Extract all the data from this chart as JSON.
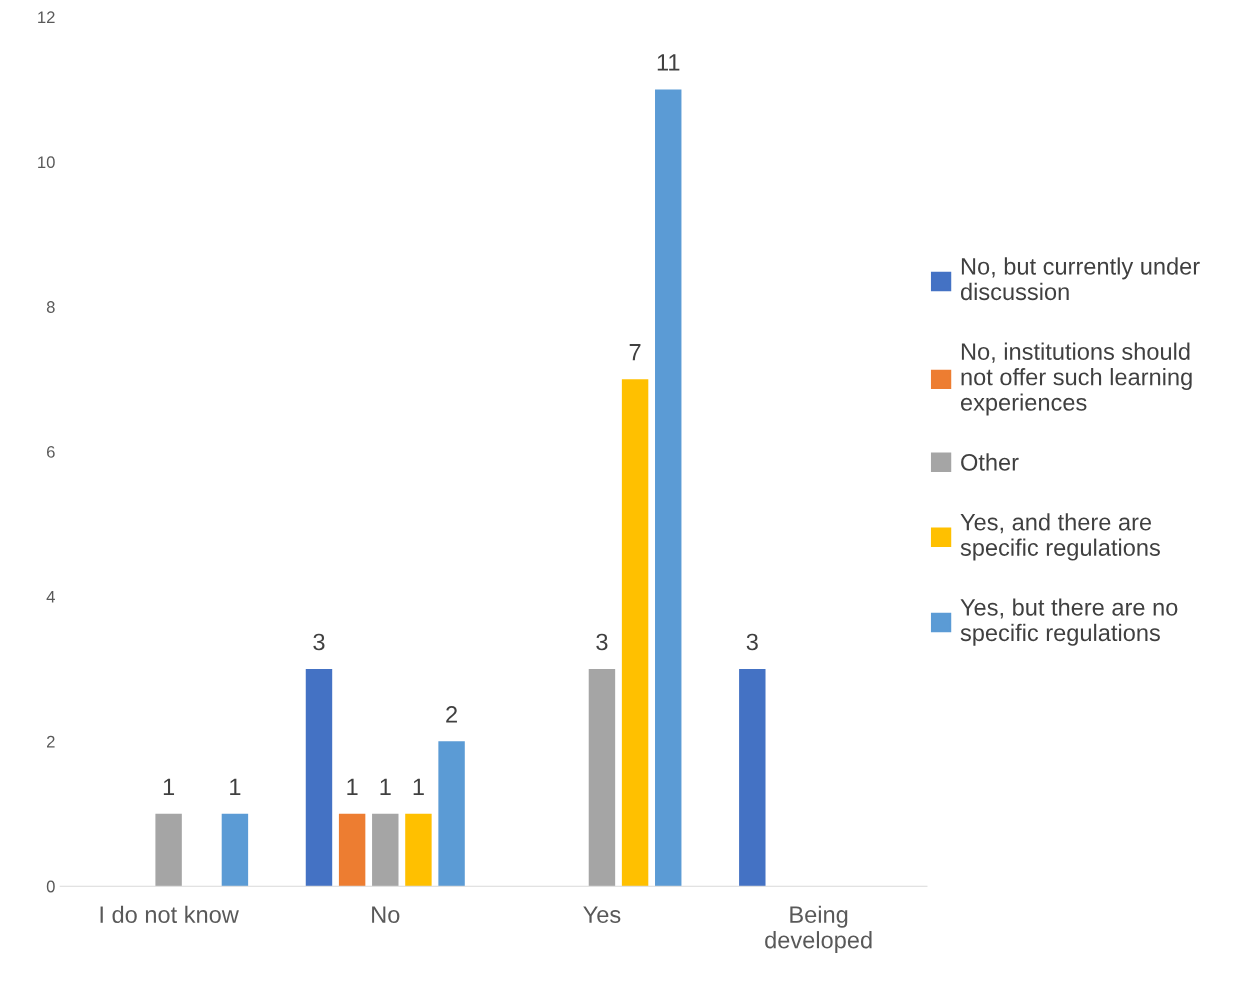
{
  "chart_data": {
    "type": "bar",
    "categories": [
      "I do not know",
      "No",
      "Yes",
      "Being\ndeveloped"
    ],
    "series": [
      {
        "name": "No, but currently under\ndiscussion",
        "color": "#4472c4",
        "values": [
          null,
          3,
          null,
          3
        ]
      },
      {
        "name": "No, institutions should\nnot offer such learning\nexperiences",
        "color": "#ed7d31",
        "values": [
          null,
          1,
          null,
          null
        ]
      },
      {
        "name": "Other",
        "color": "#a5a5a5",
        "values": [
          1,
          1,
          3,
          null
        ]
      },
      {
        "name": "Yes, and there are\nspecific regulations",
        "color": "#ffc000",
        "values": [
          null,
          1,
          7,
          null
        ]
      },
      {
        "name": "Yes, but there are no\nspecific regulations",
        "color": "#5b9bd5",
        "values": [
          1,
          2,
          11,
          null
        ]
      }
    ],
    "ylim": [
      0,
      12
    ],
    "yticks": [
      0,
      2,
      4,
      6,
      8,
      10,
      12
    ],
    "data_labels": true,
    "grid": false,
    "legend": "right"
  }
}
